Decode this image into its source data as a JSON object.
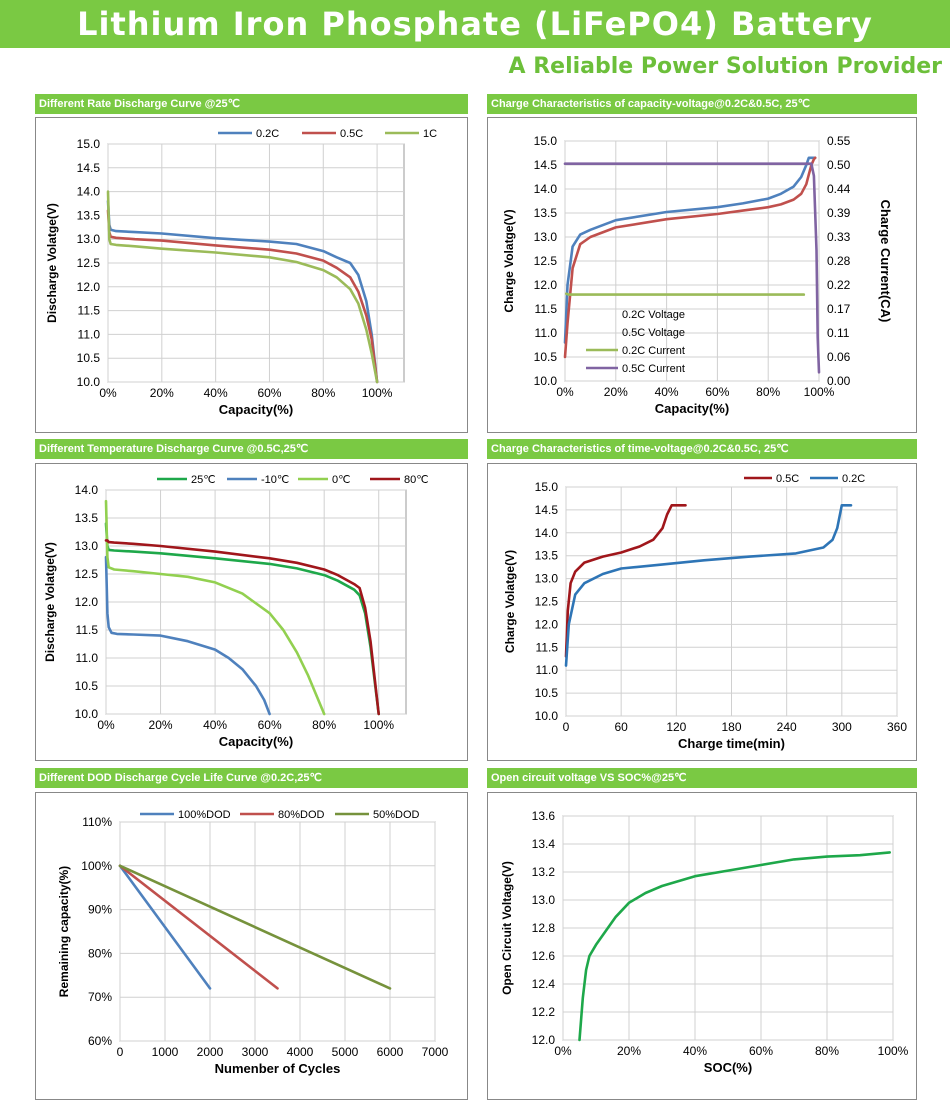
{
  "header": {
    "title": "Lithium Iron Phosphate (LiFePO4) Battery",
    "subtitle": "A Reliable Power Solution Provider"
  },
  "colors": {
    "green_band": "#7ac943",
    "blue": "#4f81bd",
    "red": "#c0504d",
    "lime": "#9bbb59",
    "darkred": "#a0161b",
    "purple": "#8064a2",
    "olive": "#76923c",
    "green_curve": "#1ea84a"
  },
  "chart_data": [
    {
      "id": "rate",
      "type": "line",
      "title": "Different Rate Discharge Curve @25℃",
      "xlabel": "Capacity(%)",
      "ylabel": "Discharge Volatge(V)",
      "xlim": [
        0,
        110
      ],
      "ylim": [
        10,
        15
      ],
      "xticks": [
        0,
        20,
        40,
        60,
        80,
        100
      ],
      "xticklabels": [
        "0%",
        "20%",
        "40%",
        "60%",
        "80%",
        "100%"
      ],
      "yticks": [
        10.0,
        10.5,
        11.0,
        11.5,
        12.0,
        12.5,
        13.0,
        13.5,
        14.0,
        14.5,
        15.0
      ],
      "yticklabels": [
        "10.0",
        "10.5",
        "11.0",
        "11.5",
        "12.0",
        "12.5",
        "13.0",
        "13.5",
        "14.0",
        "14.5",
        "15.0"
      ],
      "grid": true,
      "legend": "top",
      "series": [
        {
          "name": "0.2C",
          "color": "#4f81bd",
          "x": [
            0,
            0.5,
            1,
            3,
            10,
            20,
            40,
            60,
            70,
            80,
            85,
            90,
            93,
            96,
            98,
            100
          ],
          "y": [
            13.8,
            13.3,
            13.2,
            13.17,
            13.15,
            13.12,
            13.02,
            12.95,
            12.9,
            12.75,
            12.62,
            12.5,
            12.25,
            11.7,
            11.0,
            10.0
          ]
        },
        {
          "name": "0.5C",
          "color": "#c0504d",
          "x": [
            0,
            0.5,
            1,
            3,
            10,
            20,
            40,
            60,
            70,
            80,
            85,
            90,
            93,
            96,
            98,
            100
          ],
          "y": [
            13.6,
            13.15,
            13.05,
            13.03,
            13.0,
            12.97,
            12.87,
            12.78,
            12.7,
            12.55,
            12.4,
            12.2,
            11.9,
            11.4,
            10.9,
            10.0
          ]
        },
        {
          "name": "1C",
          "color": "#9bbb59",
          "x": [
            0,
            0.5,
            1,
            3,
            10,
            20,
            40,
            60,
            70,
            80,
            85,
            90,
            93,
            96,
            98,
            100
          ],
          "y": [
            14.0,
            13.0,
            12.9,
            12.88,
            12.85,
            12.8,
            12.72,
            12.62,
            12.52,
            12.35,
            12.2,
            11.95,
            11.65,
            11.1,
            10.6,
            10.0
          ]
        }
      ]
    },
    {
      "id": "charge_cap",
      "type": "line",
      "title": "Charge  Characteristics of capacity-voltage@0.2C&0.5C, 25℃",
      "xlabel": "Capacity(%)",
      "ylabel": "Charge Volatge(V)",
      "y2label": "Charge Current(CA)",
      "xlim": [
        0,
        100
      ],
      "ylim": [
        10,
        15
      ],
      "y2lim": [
        0,
        0.55
      ],
      "xticks": [
        0,
        20,
        40,
        60,
        80,
        100
      ],
      "xticklabels": [
        "0%",
        "20%",
        "40%",
        "60%",
        "80%",
        "100%"
      ],
      "yticks": [
        10.0,
        10.5,
        11.0,
        11.5,
        12.0,
        12.5,
        13.0,
        13.5,
        14.0,
        14.5,
        15.0
      ],
      "yticklabels": [
        "10.0",
        "10.5",
        "11.0",
        "11.5",
        "12.0",
        "12.5",
        "13.0",
        "13.5",
        "14.0",
        "14.5",
        "15.0"
      ],
      "y2ticks": [
        0.0,
        0.055,
        0.11,
        0.165,
        0.22,
        0.275,
        0.33,
        0.385,
        0.44,
        0.495,
        0.55
      ],
      "y2ticklabels": [
        "0.00",
        "0.06",
        "0.11",
        "0.17",
        "0.22",
        "0.28",
        "0.33",
        "0.39",
        "0.44",
        "0.50",
        "0.55"
      ],
      "grid": true,
      "legend": "inside-bottom-left",
      "series": [
        {
          "name": "0.2C Voltage",
          "color": "#4f81bd",
          "axis": "left",
          "x": [
            0,
            1,
            3,
            6,
            10,
            20,
            40,
            60,
            70,
            80,
            85,
            90,
            93,
            95,
            96,
            97,
            98.5
          ],
          "y": [
            10.8,
            12.0,
            12.8,
            13.05,
            13.15,
            13.35,
            13.52,
            13.62,
            13.7,
            13.8,
            13.9,
            14.05,
            14.25,
            14.5,
            14.65,
            14.65,
            14.65
          ]
        },
        {
          "name": "0.5C Voltage",
          "color": "#c0504d",
          "axis": "left",
          "x": [
            0,
            1,
            3,
            6,
            10,
            20,
            40,
            60,
            70,
            80,
            85,
            90,
            93,
            95,
            96,
            97,
            98,
            98.5
          ],
          "y": [
            10.5,
            11.2,
            12.35,
            12.85,
            13.0,
            13.2,
            13.37,
            13.48,
            13.55,
            13.62,
            13.68,
            13.78,
            13.9,
            14.1,
            14.3,
            14.5,
            14.62,
            14.65
          ]
        },
        {
          "name": "0.2C Current",
          "color": "#9bbb59",
          "axis": "right",
          "x": [
            0.5,
            1.5,
            94
          ],
          "y": [
            0.2,
            0.198,
            0.198
          ]
        },
        {
          "name": "0.5C Current",
          "color": "#8064a2",
          "axis": "right",
          "x": [
            0,
            97,
            98,
            99,
            99.5,
            100
          ],
          "y": [
            0.498,
            0.498,
            0.47,
            0.3,
            0.1,
            0.02
          ]
        }
      ]
    },
    {
      "id": "temp",
      "type": "line",
      "title": "Different Temperature Discharge Curve @0.5C,25℃",
      "xlabel": "Capacity(%)",
      "ylabel": "Discharge Volatge(V)",
      "xlim": [
        0,
        110
      ],
      "ylim": [
        10,
        14
      ],
      "xticks": [
        0,
        20,
        40,
        60,
        80,
        100
      ],
      "xticklabels": [
        "0%",
        "20%",
        "40%",
        "60%",
        "80%",
        "100%"
      ],
      "yticks": [
        10.0,
        10.5,
        11.0,
        11.5,
        12.0,
        12.5,
        13.0,
        13.5,
        14.0
      ],
      "yticklabels": [
        "10.0",
        "10.5",
        "11.0",
        "11.5",
        "12.0",
        "12.5",
        "13.0",
        "13.5",
        "14.0"
      ],
      "grid": true,
      "legend": "top",
      "series": [
        {
          "name": "25℃",
          "color": "#1ea84a",
          "x": [
            0,
            0.5,
            1,
            3,
            10,
            20,
            40,
            60,
            70,
            80,
            85,
            88,
            91,
            93,
            95,
            97,
            100
          ],
          "y": [
            13.4,
            13.0,
            12.93,
            12.92,
            12.9,
            12.87,
            12.78,
            12.68,
            12.6,
            12.48,
            12.38,
            12.3,
            12.22,
            12.12,
            11.8,
            11.2,
            10.0
          ]
        },
        {
          "name": "-10℃",
          "color": "#4f81bd",
          "x": [
            0,
            0.5,
            1,
            2,
            4,
            10,
            20,
            30,
            40,
            45,
            50,
            55,
            58,
            60
          ],
          "y": [
            12.8,
            11.8,
            11.55,
            11.45,
            11.43,
            11.42,
            11.4,
            11.3,
            11.15,
            11.0,
            10.8,
            10.5,
            10.25,
            10.0
          ]
        },
        {
          "name": "0℃",
          "color": "#92d050",
          "x": [
            0,
            0.5,
            1,
            3,
            10,
            20,
            30,
            40,
            50,
            60,
            65,
            70,
            74,
            77,
            80
          ],
          "y": [
            13.8,
            12.8,
            12.62,
            12.58,
            12.55,
            12.5,
            12.45,
            12.35,
            12.15,
            11.8,
            11.5,
            11.1,
            10.7,
            10.35,
            10.0
          ]
        },
        {
          "name": "80℃",
          "color": "#a0161b",
          "x": [
            0,
            0.5,
            1,
            3,
            10,
            20,
            40,
            60,
            70,
            80,
            85,
            88,
            91,
            93,
            95,
            97,
            100
          ],
          "y": [
            13.1,
            13.1,
            13.07,
            13.06,
            13.04,
            13.0,
            12.9,
            12.78,
            12.7,
            12.58,
            12.48,
            12.4,
            12.32,
            12.25,
            11.9,
            11.3,
            10.0
          ]
        }
      ]
    },
    {
      "id": "charge_time",
      "type": "line",
      "title": "Charge  Characteristics of time-voltage@0.2C&0.5C, 25℃",
      "xlabel": "Charge time(min)",
      "ylabel": "Charge Volatge(V)",
      "xlim": [
        0,
        360
      ],
      "ylim": [
        10,
        15
      ],
      "xticks": [
        0,
        60,
        120,
        180,
        240,
        300,
        360
      ],
      "xticklabels": [
        "0",
        "60",
        "120",
        "180",
        "240",
        "300",
        "360"
      ],
      "yticks": [
        10.0,
        10.5,
        11.0,
        11.5,
        12.0,
        12.5,
        13.0,
        13.5,
        14.0,
        14.5,
        15.0
      ],
      "yticklabels": [
        "10.0",
        "10.5",
        "11.0",
        "11.5",
        "12.0",
        "12.5",
        "13.0",
        "13.5",
        "14.0",
        "14.5",
        "15.0"
      ],
      "grid": true,
      "legend": "top-right",
      "series": [
        {
          "name": "0.5C",
          "color": "#a0161b",
          "x": [
            0,
            2,
            5,
            10,
            20,
            40,
            60,
            80,
            95,
            105,
            110,
            115,
            118,
            130
          ],
          "y": [
            11.3,
            12.3,
            12.9,
            13.15,
            13.35,
            13.48,
            13.57,
            13.7,
            13.85,
            14.1,
            14.4,
            14.6,
            14.6,
            14.6
          ]
        },
        {
          "name": "0.2C",
          "color": "#2e75b6",
          "x": [
            0,
            3,
            10,
            20,
            40,
            60,
            100,
            150,
            200,
            250,
            280,
            290,
            295,
            300,
            305,
            310
          ],
          "y": [
            11.1,
            12.0,
            12.65,
            12.9,
            13.1,
            13.22,
            13.3,
            13.4,
            13.48,
            13.55,
            13.68,
            13.85,
            14.1,
            14.6,
            14.6,
            14.6
          ]
        }
      ]
    },
    {
      "id": "cycle",
      "type": "line",
      "title": "Different DOD Discharge Cycle Life Curve @0.2C,25℃",
      "xlabel": "Numenber of Cycles",
      "ylabel": "Remaining capacity(%)",
      "xlim": [
        0,
        7000
      ],
      "ylim": [
        60,
        110
      ],
      "xticks": [
        0,
        1000,
        2000,
        3000,
        4000,
        5000,
        6000,
        7000
      ],
      "xticklabels": [
        "0",
        "1000",
        "2000",
        "3000",
        "4000",
        "5000",
        "6000",
        "7000"
      ],
      "yticks": [
        60,
        70,
        80,
        90,
        100,
        110
      ],
      "yticklabels": [
        "60%",
        "70%",
        "80%",
        "90%",
        "100%",
        "110%"
      ],
      "grid": true,
      "legend": "top",
      "series": [
        {
          "name": "100%DOD",
          "color": "#4f81bd",
          "x": [
            0,
            2000
          ],
          "y": [
            100,
            72
          ]
        },
        {
          "name": "80%DOD",
          "color": "#c0504d",
          "x": [
            0,
            3500
          ],
          "y": [
            100,
            72
          ]
        },
        {
          "name": "50%DOD",
          "color": "#76923c",
          "x": [
            0,
            6000
          ],
          "y": [
            100,
            72
          ]
        }
      ]
    },
    {
      "id": "ocv",
      "type": "line",
      "title": "Open circuit voltage VS SOC%@25℃",
      "xlabel": "SOC(%)",
      "ylabel": "Open Circuit Voltage(V)",
      "xlim": [
        0,
        100
      ],
      "ylim": [
        12.0,
        13.6
      ],
      "xticks": [
        0,
        20,
        40,
        60,
        80,
        100
      ],
      "xticklabels": [
        "0%",
        "20%",
        "40%",
        "60%",
        "80%",
        "100%"
      ],
      "yticks": [
        12.0,
        12.2,
        12.4,
        12.6,
        12.8,
        13.0,
        13.2,
        13.4,
        13.6
      ],
      "yticklabels": [
        "12.0",
        "12.2",
        "12.4",
        "12.6",
        "12.8",
        "13.0",
        "13.2",
        "13.4",
        "13.6"
      ],
      "grid": true,
      "legend": "none",
      "series": [
        {
          "name": "",
          "color": "#1ea84a",
          "x": [
            5,
            6,
            7,
            8,
            10,
            13,
            16,
            20,
            25,
            30,
            40,
            50,
            60,
            70,
            80,
            90,
            99
          ],
          "y": [
            12.0,
            12.3,
            12.5,
            12.6,
            12.68,
            12.78,
            12.88,
            12.98,
            13.05,
            13.1,
            13.17,
            13.21,
            13.25,
            13.29,
            13.31,
            13.32,
            13.34
          ]
        }
      ]
    }
  ]
}
